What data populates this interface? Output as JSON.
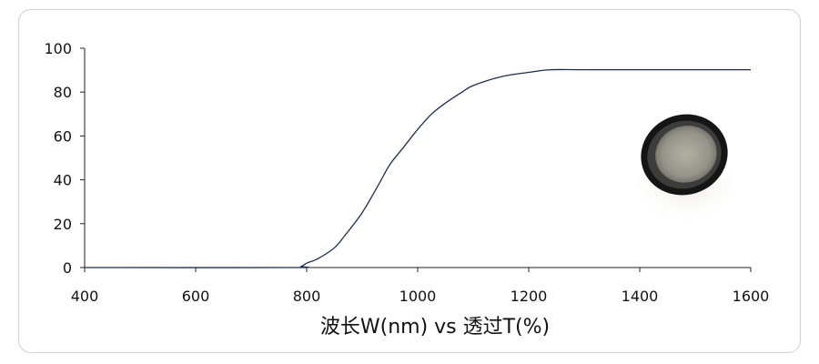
{
  "chart_data": {
    "type": "line",
    "title": "",
    "xlabel": "波长W(nm) vs 透过T(%)",
    "ylabel": "",
    "xlim": [
      400,
      1600
    ],
    "ylim": [
      0,
      100
    ],
    "xticks": [
      400,
      600,
      800,
      1000,
      1200,
      1400,
      1600
    ],
    "yticks": [
      0,
      20,
      40,
      60,
      80,
      100
    ],
    "grid": false,
    "legend": "none",
    "line_color": "#1f2d4d",
    "series": [
      {
        "x": [
          400,
          770,
          790,
          800,
          820,
          850,
          870,
          900,
          930,
          950,
          975,
          1000,
          1025,
          1050,
          1080,
          1100,
          1150,
          1200,
          1240,
          1300,
          1400,
          1500,
          1600
        ],
        "y": [
          0,
          0,
          0.5,
          2,
          4,
          9,
          15,
          25,
          38,
          47,
          55,
          63,
          70,
          75,
          80,
          83,
          87,
          89,
          90.2,
          90.2,
          90.2,
          90.2,
          90.2
        ]
      }
    ]
  }
}
